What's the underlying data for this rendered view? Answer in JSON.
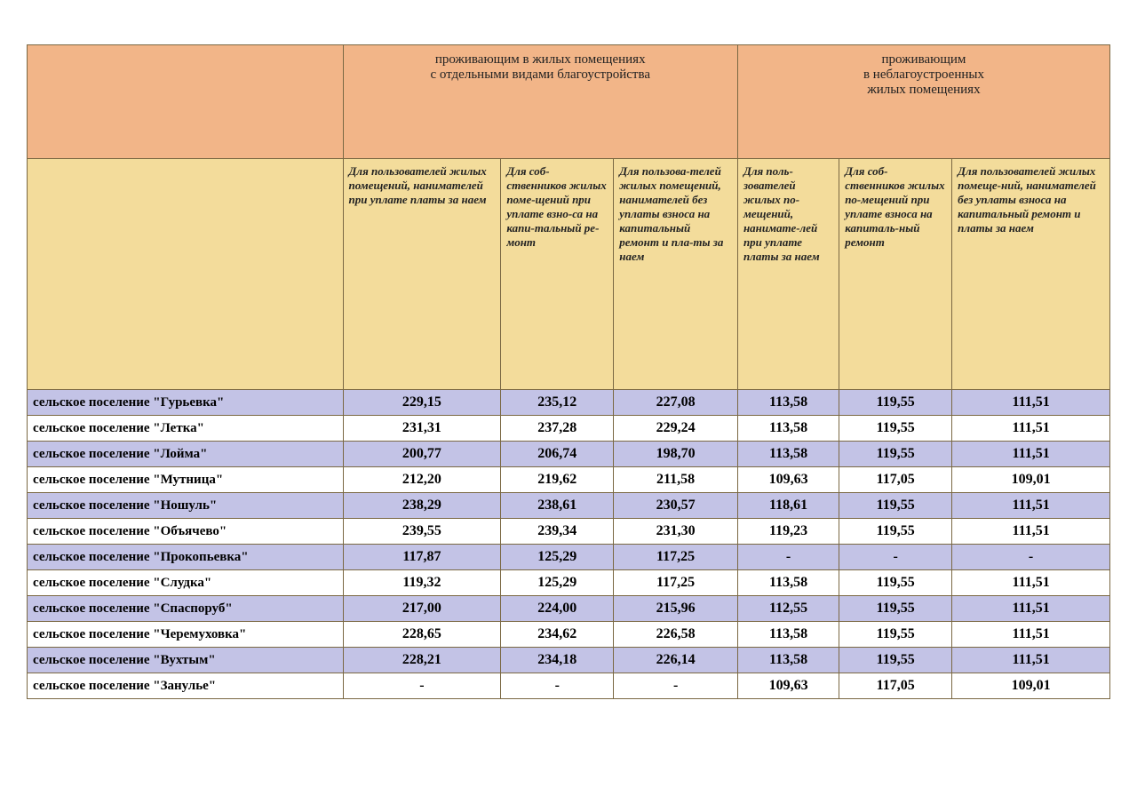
{
  "colors": {
    "header_group_bg": "#f2b588",
    "header_sub_bg": "#f3dc9b",
    "row_alt_bg": "#c3c3e6",
    "row_norm_bg": "#ffffff",
    "border": "#7a6843",
    "text": "#000000"
  },
  "column_widths_pct": [
    28,
    14,
    10,
    11,
    9,
    10,
    14
  ],
  "fontsizes": {
    "group_header": 15,
    "sub_header": 13,
    "row_name": 15,
    "value": 16
  },
  "group_headers": [
    "проживающим в жилых помещениях\nс отдельными видами благоустройства",
    "проживающим\nв неблагоустроенных\nжилых помещениях"
  ],
  "sub_headers": [
    "Для пользователей жилых помещений, нанимателей при уплате платы за наем",
    "Для соб-ственников жилых поме-щений при уплате взно-са на капи-тальный ре-монт",
    "Для пользова-телей жилых помещений, нанимателей без уплаты взноса на капитальный ремонт и пла-ты за наем",
    "Для  поль-зователей жилых по-мещений, нанимате-лей  при уплате платы за наем",
    "Для соб-ственников жилых по-мещений при  уплате взноса на капиталь-ный ремонт",
    "Для пользователей жилых помеще-ний, нанимателей без уплаты взноса  на капитальный ремонт и платы за наем"
  ],
  "rows": [
    {
      "name": "сельское поселение \"Гурьевка\"",
      "vals": [
        "229,15",
        "235,12",
        "227,08",
        "113,58",
        "119,55",
        "111,51"
      ]
    },
    {
      "name": "сельское поселение \"Летка\"",
      "vals": [
        "231,31",
        "237,28",
        "229,24",
        "113,58",
        "119,55",
        "111,51"
      ]
    },
    {
      "name": "сельское поселение \"Лойма\"",
      "vals": [
        "200,77",
        "206,74",
        "198,70",
        "113,58",
        "119,55",
        "111,51"
      ]
    },
    {
      "name": "сельское поселение \"Мутница\"",
      "vals": [
        "212,20",
        "219,62",
        "211,58",
        "109,63",
        "117,05",
        "109,01"
      ]
    },
    {
      "name": "сельское поселение \"Ношуль\"",
      "vals": [
        "238,29",
        "238,61",
        "230,57",
        "118,61",
        "119,55",
        "111,51"
      ]
    },
    {
      "name": "сельское поселение \"Объячево\"",
      "vals": [
        "239,55",
        "239,34",
        "231,30",
        "119,23",
        "119,55",
        "111,51"
      ]
    },
    {
      "name": "сельское поселение \"Прокопьевка\"",
      "vals": [
        "117,87",
        "125,29",
        "117,25",
        "-",
        "-",
        "-"
      ]
    },
    {
      "name": "сельское поселение \"Слудка\"",
      "vals": [
        "119,32",
        "125,29",
        "117,25",
        "113,58",
        "119,55",
        "111,51"
      ]
    },
    {
      "name": "сельское поселение \"Спаспоруб\"",
      "vals": [
        "217,00",
        "224,00",
        "215,96",
        "112,55",
        "119,55",
        "111,51"
      ]
    },
    {
      "name": "сельское поселение \"Черемуховка\"",
      "vals": [
        "228,65",
        "234,62",
        "226,58",
        "113,58",
        "119,55",
        "111,51"
      ]
    },
    {
      "name": "сельское поселение \"Вухтым\"",
      "vals": [
        "228,21",
        "234,18",
        "226,14",
        "113,58",
        "119,55",
        "111,51"
      ]
    },
    {
      "name": "сельское поселение \"Занулье\"",
      "vals": [
        "-",
        "-",
        "-",
        "109,63",
        "117,05",
        "109,01"
      ]
    }
  ]
}
